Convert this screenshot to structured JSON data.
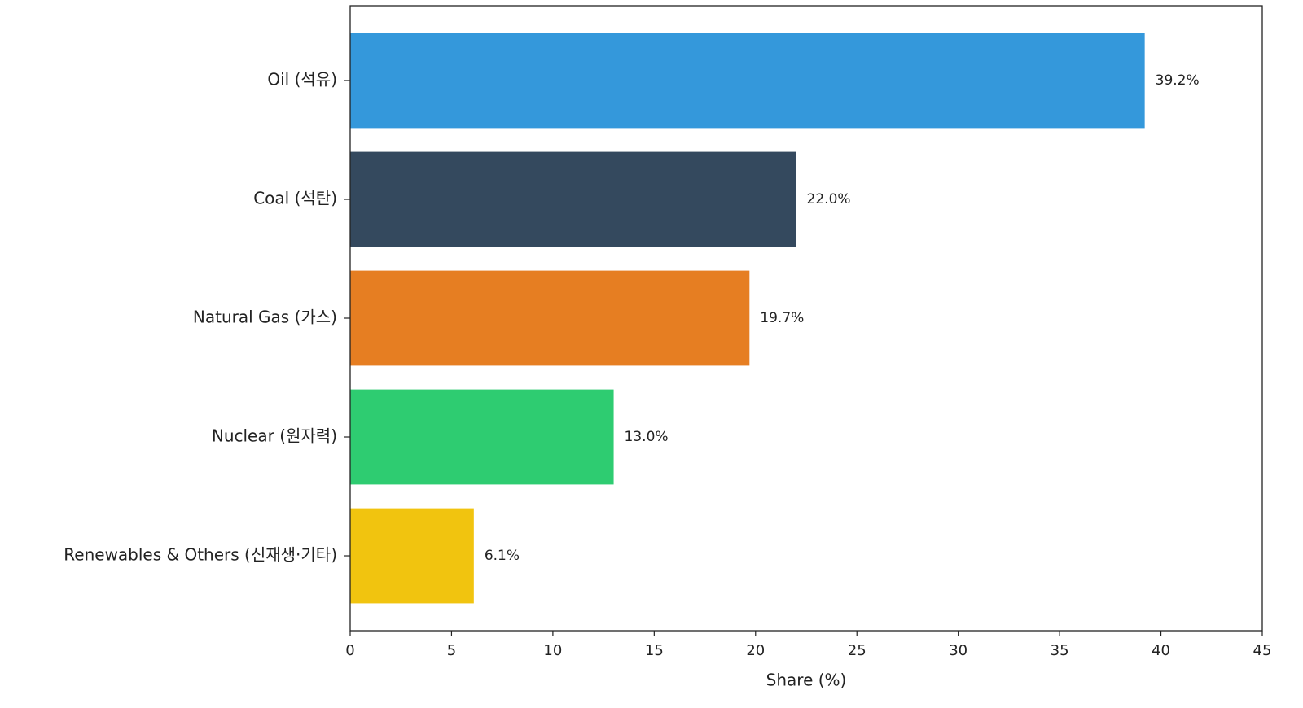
{
  "chart_data": {
    "type": "bar",
    "orientation": "horizontal",
    "categories": [
      "Oil (석유)",
      "Coal (석탄)",
      "Natural Gas (가스)",
      "Nuclear (원자력)",
      "Renewables & Others (신재생·기타)"
    ],
    "values": [
      39.2,
      22.0,
      19.7,
      13.0,
      6.1
    ],
    "value_labels": [
      "39.2%",
      "22.0%",
      "19.7%",
      "13.0%",
      "6.1%"
    ],
    "colors": [
      "#3498db",
      "#34495e",
      "#e67e22",
      "#2ecc71",
      "#f1c40f"
    ],
    "xlabel": "Share (%)",
    "xlim": [
      0,
      45
    ],
    "xticks": [
      0,
      5,
      10,
      15,
      20,
      25,
      30,
      35,
      40,
      45
    ],
    "grid": false
  }
}
